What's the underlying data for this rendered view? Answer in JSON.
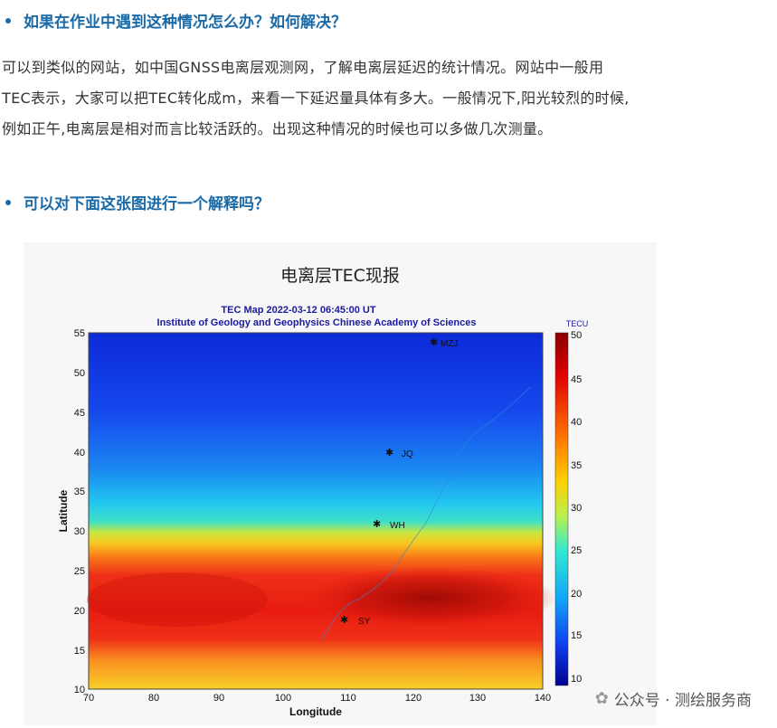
{
  "question1": "如果在作业中遇到这种情况怎么办？如何解决？",
  "answer_lines": [
    "可以到类似的网站，如中国GNSS电离层观测网，了解电离层延迟的统计情况。网站中一般用",
    "TEC表示，大家可以把TEC转化成m，来看一下延迟量具体有多大。一般情况下,阳光较烈的时候,",
    "例如正午,电离层是相对而言比较活跃的。出现这种情况的时候也可以多做几次测量。"
  ],
  "question2": "可以对下面这张图进行一个解释吗？",
  "figure": {
    "caption": "电离层TEC现报",
    "map_title": "TEC Map 2022-03-12 06:45:00 UT",
    "map_subtitle": "Institute of Geology and Geophysics Chinese Academy of Sciences",
    "xlabel": "Longitude",
    "ylabel": "Latitude",
    "x_ticks": [
      "70",
      "80",
      "90",
      "100",
      "110",
      "120",
      "130",
      "140"
    ],
    "y_ticks": [
      "55",
      "50",
      "45",
      "40",
      "35",
      "30",
      "25",
      "20",
      "15",
      "10"
    ],
    "colorbar_label": "TECU",
    "colorbar_ticks": [
      "50",
      "45",
      "40",
      "35",
      "30",
      "25",
      "20",
      "15",
      "10"
    ],
    "stations": [
      "MZJ",
      "JQ",
      "WH",
      "SY"
    ]
  },
  "watermark": "公众号 · 测绘服务商",
  "colors": {
    "heading": "#1a6aa8",
    "body_text": "#333333"
  }
}
